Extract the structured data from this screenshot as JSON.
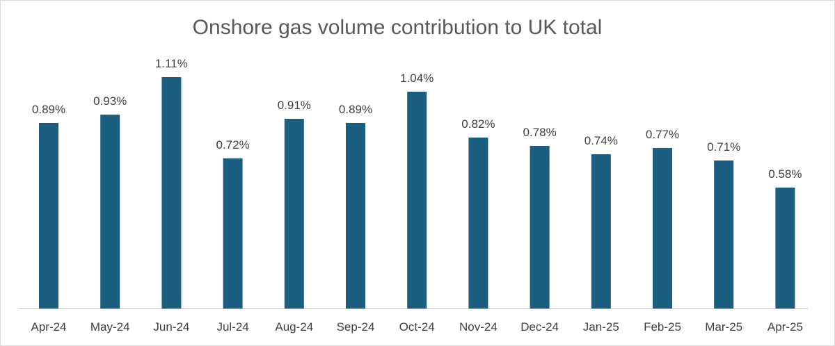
{
  "chart_data": {
    "type": "bar",
    "title": "Onshore gas volume contribution to UK total",
    "categories": [
      "Apr-24",
      "May-24",
      "Jun-24",
      "Jul-24",
      "Aug-24",
      "Sep-24",
      "Oct-24",
      "Nov-24",
      "Dec-24",
      "Jan-25",
      "Feb-25",
      "Mar-25",
      "Apr-25"
    ],
    "values": [
      0.89,
      0.93,
      1.11,
      0.72,
      0.91,
      0.89,
      1.04,
      0.82,
      0.78,
      0.74,
      0.77,
      0.71,
      0.58
    ],
    "data_labels": [
      "0.89%",
      "0.93%",
      "1.11%",
      "0.72%",
      "0.91%",
      "0.89%",
      "1.04%",
      "0.82%",
      "0.78%",
      "0.74%",
      "0.77%",
      "0.71%",
      "0.58%"
    ],
    "unit": "%",
    "xlabel": "",
    "ylabel": "",
    "ylim": [
      0,
      1.2
    ],
    "grid": false,
    "legend": "none",
    "bar_color": "#1a5e80",
    "axis_color": "#bfbfbf"
  }
}
